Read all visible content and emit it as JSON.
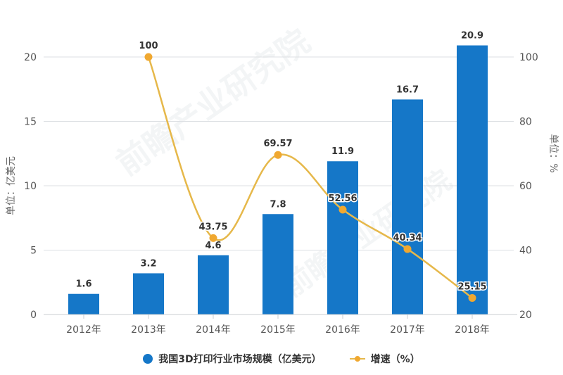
{
  "chart_data": {
    "type": "bar+line",
    "title": "",
    "categories": [
      "2012年",
      "2013年",
      "2014年",
      "2015年",
      "2016年",
      "2017年",
      "2018年"
    ],
    "series": [
      {
        "name": "我国3D打印行业市场规模（亿美元）",
        "type": "bar",
        "axis": "left",
        "color": "#1577C8",
        "values": [
          1.6,
          3.2,
          4.6,
          7.8,
          11.9,
          16.7,
          20.9
        ],
        "labels": [
          "1.6",
          "3.2",
          "4.6",
          "7.8",
          "11.9",
          "16.7",
          "20.9"
        ]
      },
      {
        "name": "增速（%）",
        "type": "line",
        "axis": "right",
        "color": "#F0A830",
        "values": [
          null,
          100,
          43.75,
          69.57,
          52.56,
          40.34,
          25.15
        ],
        "labels": [
          "",
          "100",
          "43.75",
          "69.57",
          "52.56",
          "40.34",
          "25.15"
        ]
      }
    ],
    "y_left": {
      "label": "单位：亿美元",
      "ticks": [
        "0",
        "5",
        "10",
        "15",
        "20"
      ],
      "ylim": [
        0,
        20
      ]
    },
    "y_right": {
      "label": "单位：%",
      "ticks": [
        "20",
        "40",
        "60",
        "80",
        "100"
      ],
      "ylim": [
        20,
        100
      ]
    },
    "grid": true,
    "legend_position": "bottom"
  },
  "legend": {
    "bar_label": "我国3D打印行业市场规模（亿美元）",
    "line_label": "增速（%）"
  },
  "watermark": "前瞻产业研究院"
}
